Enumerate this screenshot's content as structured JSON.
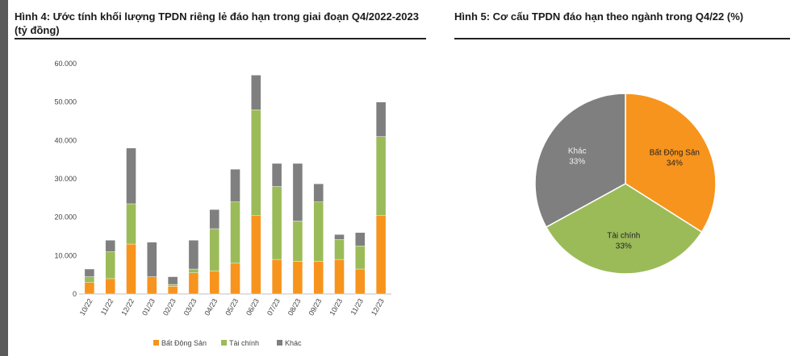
{
  "titles": {
    "left": "Hình 4: Ước tính khối lượng TPDN riêng lẻ đáo hạn trong giai đoạn Q4/2022-2023 (tỷ đồng)",
    "right": "Hình 5: Cơ cấu TPDN đáo hạn theo ngành trong Q4/22 (%)"
  },
  "chart_data": [
    {
      "type": "bar",
      "stacked": true,
      "title": "Hình 4: Ước tính khối lượng TPDN riêng lẻ đáo hạn trong giai đoạn Q4/2022-2023 (tỷ đồng)",
      "categories": [
        "10/22",
        "11/22",
        "12/22",
        "01/23",
        "02/23",
        "03/23",
        "04/23",
        "05/23",
        "06/23",
        "07/23",
        "08/23",
        "09/23",
        "10/23",
        "11/23",
        "12/23"
      ],
      "y_ticks": [
        "0",
        "10.000",
        "20.000",
        "30.000",
        "40.000",
        "50.000",
        "60.000"
      ],
      "ylim": [
        0,
        60000
      ],
      "grid": false,
      "legend_position": "bottom",
      "series": [
        {
          "name": "Bất Động Sản",
          "color": "#f7941d",
          "values": [
            3000,
            4000,
            13000,
            4500,
            2000,
            5500,
            6000,
            8000,
            20500,
            9000,
            8500,
            8500,
            9000,
            6500,
            20500
          ]
        },
        {
          "name": "Tài chính",
          "color": "#9bbb59",
          "values": [
            1500,
            7000,
            10500,
            0,
            500,
            1000,
            11000,
            16000,
            27500,
            19000,
            10500,
            15500,
            5200,
            6000,
            20500
          ]
        },
        {
          "name": "Khác",
          "color": "#7f7f7f",
          "values": [
            2000,
            3000,
            14500,
            9000,
            2000,
            7500,
            5000,
            8500,
            9000,
            6000,
            15000,
            4700,
            1300,
            3500,
            9000
          ]
        }
      ]
    },
    {
      "type": "pie",
      "title": "Hình 5: Cơ cấu TPDN đáo hạn theo ngành trong Q4/22 (%)",
      "slices": [
        {
          "label": "Bất Động Sản",
          "value": 34,
          "display": "34%",
          "color": "#f7941d"
        },
        {
          "label": "Tài chính",
          "value": 33,
          "display": "33%",
          "color": "#9bbb59"
        },
        {
          "label": "Khác",
          "value": 33,
          "display": "33%",
          "color": "#7f7f7f"
        }
      ]
    }
  ]
}
